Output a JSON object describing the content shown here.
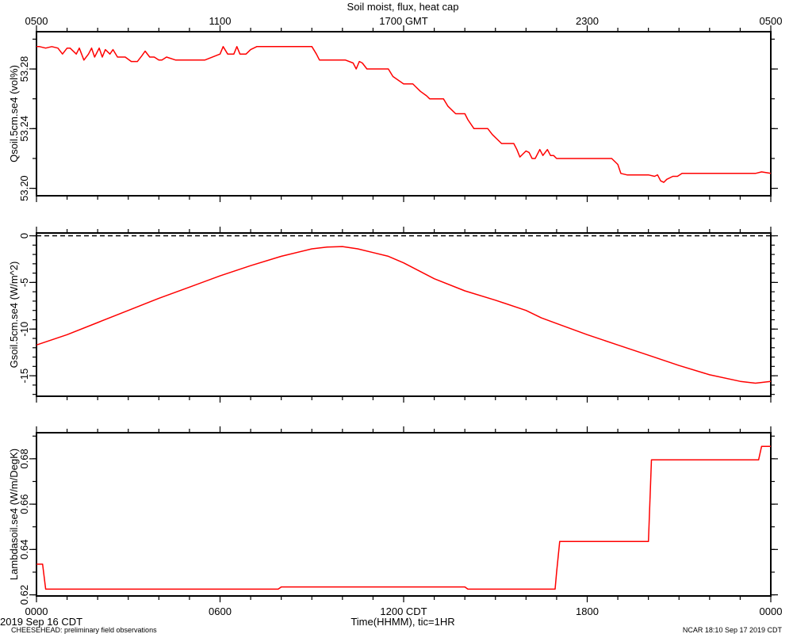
{
  "chart_data": {
    "type": "line",
    "title": "Soil moist, flux, heat cap",
    "top_axis": {
      "labels": [
        "0500",
        "1100",
        "1700 GMT",
        "2300",
        "0500"
      ],
      "label_hours": [
        0,
        6,
        12,
        18,
        24
      ]
    },
    "bottom_axis": {
      "labels": [
        "0000",
        "0600",
        "1200 CDT",
        "1800",
        "0000"
      ],
      "label_hours": [
        0,
        6,
        12,
        18,
        24
      ],
      "xlabel": "Time(HHMM), tic=1HR",
      "date": "2019 Sep 16 CDT"
    },
    "footer_left": "CHEESEHEAD: preliminary field observations",
    "footer_right": "NCAR 18:10 Sep 17 2019 CDT",
    "panels": [
      {
        "name": "qsoil",
        "ylabel": "Qsoil.5cm.se4 (vol%)",
        "ylim": [
          53.195,
          53.305
        ],
        "yticks": [
          53.2,
          53.24,
          53.28
        ],
        "ytick_labels": [
          "53.20",
          "53.24",
          "53.28"
        ],
        "minor_step": 0.02,
        "x": [
          0,
          0.1,
          0.3,
          0.5,
          0.7,
          0.85,
          1.0,
          1.1,
          1.3,
          1.4,
          1.55,
          1.7,
          1.8,
          1.9,
          2.05,
          2.15,
          2.25,
          2.4,
          2.5,
          2.65,
          2.9,
          3.1,
          3.3,
          3.45,
          3.55,
          3.7,
          3.85,
          4.0,
          4.1,
          4.25,
          4.55,
          4.8,
          5.2,
          5.5,
          6.0,
          6.1,
          6.25,
          6.45,
          6.55,
          6.65,
          6.85,
          7.0,
          7.2,
          7.5,
          8.0,
          8.5,
          9.0,
          9.15,
          9.25,
          10.0,
          10.1,
          10.35,
          10.45,
          10.55,
          10.65,
          10.8,
          11.0,
          11.3,
          11.5,
          11.65,
          12.0,
          12.3,
          12.4,
          12.55,
          12.75,
          12.85,
          13.0,
          13.3,
          13.45,
          13.7,
          14.0,
          14.1,
          14.3,
          14.75,
          14.9,
          15.2,
          15.45,
          15.6,
          15.7,
          15.8,
          16.0,
          16.1,
          16.2,
          16.3,
          16.45,
          16.55,
          16.7,
          16.8,
          16.9,
          17.0,
          17.2,
          17.5,
          18.0,
          18.5,
          18.8,
          19.0,
          19.1,
          19.3,
          19.55,
          20.0,
          20.2,
          20.3,
          20.4,
          20.5,
          20.6,
          20.8,
          20.95,
          21.1,
          21.4,
          21.8,
          22.0,
          22.5,
          23.5,
          23.7,
          24.0
        ],
        "y": [
          53.295,
          53.295,
          53.294,
          53.295,
          53.294,
          53.29,
          53.294,
          53.294,
          53.29,
          53.294,
          53.286,
          53.29,
          53.294,
          53.288,
          53.294,
          53.288,
          53.293,
          53.29,
          53.293,
          53.288,
          53.288,
          53.285,
          53.285,
          53.289,
          53.292,
          53.288,
          53.288,
          53.286,
          53.286,
          53.288,
          53.286,
          53.286,
          53.286,
          53.286,
          53.29,
          53.295,
          53.29,
          53.29,
          53.295,
          53.29,
          53.29,
          53.293,
          53.295,
          53.295,
          53.295,
          53.295,
          53.295,
          53.29,
          53.286,
          53.286,
          53.286,
          53.284,
          53.28,
          53.285,
          53.284,
          53.28,
          53.28,
          53.28,
          53.28,
          53.275,
          53.27,
          53.27,
          53.268,
          53.265,
          53.262,
          53.26,
          53.26,
          53.26,
          53.255,
          53.25,
          53.25,
          53.246,
          53.24,
          53.24,
          53.236,
          53.23,
          53.23,
          53.23,
          53.226,
          53.221,
          53.225,
          53.224,
          53.22,
          53.22,
          53.226,
          53.222,
          53.226,
          53.222,
          53.222,
          53.22,
          53.22,
          53.22,
          53.22,
          53.22,
          53.22,
          53.216,
          53.21,
          53.209,
          53.209,
          53.209,
          53.208,
          53.209,
          53.205,
          53.204,
          53.206,
          53.208,
          53.208,
          53.21,
          53.21,
          53.21,
          53.21,
          53.21,
          53.21,
          53.211,
          53.21
        ]
      },
      {
        "name": "gsoil",
        "ylabel": "Gsoil.5cm.se4 (W/m^2)",
        "ylim": [
          -17.2,
          0.3
        ],
        "yticks": [
          -15,
          -10,
          -5,
          0
        ],
        "ytick_labels": [
          "-15",
          "-10",
          "-5",
          "0"
        ],
        "minor_step": 1,
        "zero_line": 0,
        "x": [
          0,
          1,
          2,
          3,
          4,
          5,
          6,
          7,
          8,
          9,
          9.5,
          10,
          10.5,
          11,
          11.5,
          12,
          13,
          14,
          15,
          16,
          16.5,
          17,
          18,
          19,
          20,
          21,
          22,
          23,
          23.5,
          24
        ],
        "y": [
          -11.7,
          -10.6,
          -9.3,
          -8.0,
          -6.7,
          -5.5,
          -4.3,
          -3.2,
          -2.2,
          -1.4,
          -1.2,
          -1.15,
          -1.4,
          -1.8,
          -2.2,
          -2.9,
          -4.6,
          -5.9,
          -6.9,
          -8.0,
          -8.8,
          -9.4,
          -10.6,
          -11.7,
          -12.8,
          -13.9,
          -14.9,
          -15.6,
          -15.8,
          -15.6
        ]
      },
      {
        "name": "lambda",
        "ylabel": "Lambdasoil.se4 (W/m/DegK)",
        "ylim": [
          0.6195,
          0.6915
        ],
        "yticks": [
          0.62,
          0.64,
          0.66,
          0.68
        ],
        "ytick_labels": [
          "0.62",
          "0.64",
          "0.66",
          "0.68"
        ],
        "minor_step": 0.01,
        "x": [
          0,
          0.2,
          0.3,
          7.9,
          8.0,
          14.0,
          14.1,
          16.95,
          17.0,
          17.1,
          20.0,
          20.1,
          23.6,
          23.7,
          24.0
        ],
        "y": [
          0.6335,
          0.6335,
          0.6225,
          0.6225,
          0.6235,
          0.6235,
          0.6225,
          0.6225,
          0.63,
          0.6435,
          0.6435,
          0.6795,
          0.6795,
          0.6855,
          0.6855
        ]
      }
    ]
  }
}
